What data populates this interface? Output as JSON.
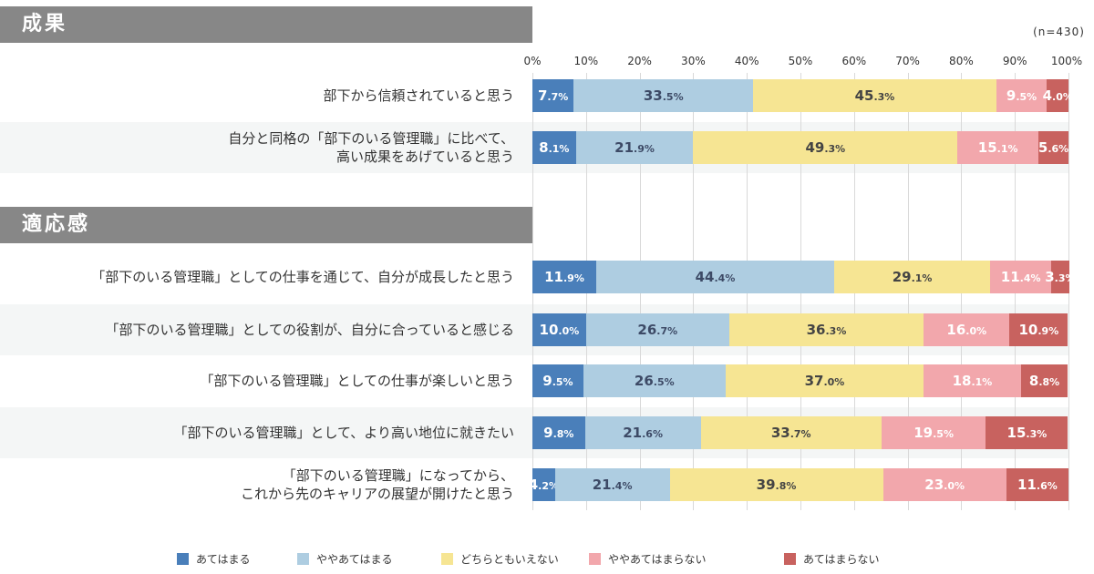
{
  "sample_size": "(n=430)",
  "sections": [
    {
      "title": "成果"
    },
    {
      "title": "適応感"
    }
  ],
  "chart_data": {
    "type": "bar",
    "orientation": "horizontal",
    "stacked": true,
    "xlim": [
      0,
      100
    ],
    "x_ticks": [
      "0%",
      "10%",
      "20%",
      "30%",
      "40%",
      "50%",
      "60%",
      "70%",
      "80%",
      "90%",
      "100%"
    ],
    "grid": true,
    "legend_position": "bottom",
    "series_names": [
      "あてはまる",
      "ややあてはまる",
      "どちらともいえない",
      "ややあてはまらない",
      "あてはまらない"
    ],
    "colors": [
      "#4a7fba",
      "#aecde1",
      "#f6e593",
      "#f2a7ac",
      "#c8625f"
    ],
    "label_colors": [
      "#ffffff",
      "#3d4a66",
      "#444444",
      "#ffffff",
      "#ffffff"
    ],
    "categories": [
      {
        "section": 0,
        "label": [
          "部下から信頼されていると思う"
        ],
        "values": [
          7.7,
          33.5,
          45.3,
          9.5,
          4.0
        ]
      },
      {
        "section": 0,
        "label": [
          "自分と同格の「部下のいる管理職」に比べて、",
          "高い成果をあげていると思う"
        ],
        "values": [
          8.1,
          21.9,
          49.3,
          15.1,
          5.6
        ]
      },
      {
        "section": 1,
        "label": [
          "「部下のいる管理職」としての仕事を通じて、自分が成長したと思う"
        ],
        "values": [
          11.9,
          44.4,
          29.1,
          11.4,
          3.3
        ]
      },
      {
        "section": 1,
        "label": [
          "「部下のいる管理職」としての役割が、自分に合っていると感じる"
        ],
        "values": [
          10.0,
          26.7,
          36.3,
          16.0,
          10.9
        ]
      },
      {
        "section": 1,
        "label": [
          "「部下のいる管理職」としての仕事が楽しいと思う"
        ],
        "values": [
          9.5,
          26.5,
          37.0,
          18.1,
          8.8
        ]
      },
      {
        "section": 1,
        "label": [
          "「部下のいる管理職」として、より高い地位に就きたい"
        ],
        "values": [
          9.8,
          21.6,
          33.7,
          19.5,
          15.3
        ]
      },
      {
        "section": 1,
        "label": [
          "「部下のいる管理職」になってから、",
          "これから先のキャリアの展望が開けたと思う"
        ],
        "values": [
          4.2,
          21.4,
          39.8,
          23.0,
          11.6
        ]
      }
    ]
  }
}
